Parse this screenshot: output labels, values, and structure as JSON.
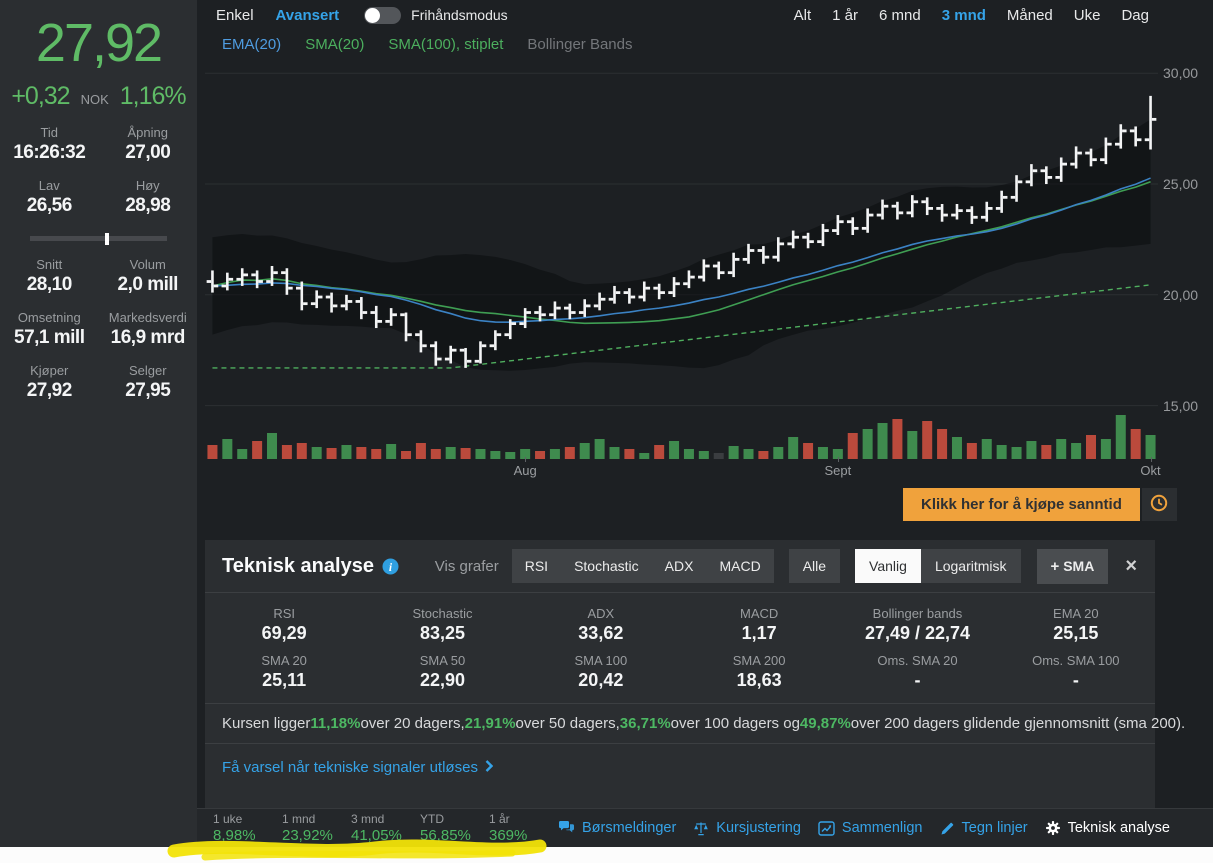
{
  "sidebar": {
    "price": "27,92",
    "change": "+0,32",
    "currency": "NOK",
    "change_pct": "1,16%",
    "stats_top": [
      {
        "label": "Tid",
        "value": "16:26:32"
      },
      {
        "label": "Åpning",
        "value": "27,00"
      },
      {
        "label": "Lav",
        "value": "26,56"
      },
      {
        "label": "Høy",
        "value": "28,98"
      }
    ],
    "stats_bottom": [
      {
        "label": "Snitt",
        "value": "28,10"
      },
      {
        "label": "Volum",
        "value": "2,0 mill"
      },
      {
        "label": "Omsetning",
        "value": "57,1 mill"
      },
      {
        "label": "Markedsverdi",
        "value": "16,9 mrd"
      },
      {
        "label": "Kjøper",
        "value": "27,92"
      },
      {
        "label": "Selger",
        "value": "27,95"
      }
    ],
    "range_slider_pct": 56
  },
  "chart_header": {
    "mode_tabs": [
      {
        "label": "Enkel",
        "active": false
      },
      {
        "label": "Avansert",
        "active": true
      }
    ],
    "freehand_label": "Frihåndsmodus",
    "freehand_on": false,
    "ranges": [
      {
        "label": "Alt",
        "active": false
      },
      {
        "label": "1 år",
        "active": false
      },
      {
        "label": "6 mnd",
        "active": false
      },
      {
        "label": "3 mnd",
        "active": true
      },
      {
        "label": "Måned",
        "active": false
      },
      {
        "label": "Uke",
        "active": false
      },
      {
        "label": "Dag",
        "active": false
      }
    ],
    "legend": [
      {
        "label": "EMA(20)",
        "color": "#4f9ce0"
      },
      {
        "label": "SMA(20)",
        "color": "#4caf5e"
      },
      {
        "label": "SMA(100), stiplet",
        "color": "#4caf5e"
      },
      {
        "label": "Bollinger Bands",
        "color": "#73767a"
      }
    ]
  },
  "realtime_button": {
    "label": "Klikk her for å kjøpe sanntid"
  },
  "panel": {
    "title": "Teknisk analyse",
    "vis_grafer_label": "Vis grafer",
    "graph_buttons": [
      "RSI",
      "Stochastic",
      "ADX",
      "MACD"
    ],
    "alle_label": "Alle",
    "scale_buttons": [
      {
        "label": "Vanlig",
        "active": true
      },
      {
        "label": "Logaritmisk",
        "active": false
      }
    ],
    "add_sma_label": "SMA",
    "close_label": "×",
    "stats_row1": [
      {
        "label": "RSI",
        "value": "69,29"
      },
      {
        "label": "Stochastic",
        "value": "83,25"
      },
      {
        "label": "ADX",
        "value": "33,62"
      },
      {
        "label": "MACD",
        "value": "1,17"
      },
      {
        "label": "Bollinger bands",
        "value": "27,49 / 22,74"
      },
      {
        "label": "EMA 20",
        "value": "25,15"
      }
    ],
    "stats_row2": [
      {
        "label": "SMA 20",
        "value": "25,11"
      },
      {
        "label": "SMA 50",
        "value": "22,90"
      },
      {
        "label": "SMA 100",
        "value": "20,42"
      },
      {
        "label": "SMA 200",
        "value": "18,63"
      },
      {
        "label": "Oms. SMA 20",
        "value": "-"
      },
      {
        "label": "Oms. SMA 100",
        "value": "-"
      }
    ],
    "summary_parts": [
      {
        "text": "Kursen ligger "
      },
      {
        "text": "11,18%",
        "highlight": true
      },
      {
        "text": " over 20 dagers, "
      },
      {
        "text": "21,91%",
        "highlight": true
      },
      {
        "text": " over 50 dagers, "
      },
      {
        "text": "36,71%",
        "highlight": true
      },
      {
        "text": " over 100 dagers og "
      },
      {
        "text": "49,87%",
        "highlight": true
      },
      {
        "text": " over 200 dagers glidende gjennomsnitt (sma 200)."
      }
    ],
    "alert_link": "Få varsel når tekniske signaler utløses"
  },
  "performance": [
    {
      "label": "1 uke",
      "value": "8,98%"
    },
    {
      "label": "1 mnd",
      "value": "23,92%"
    },
    {
      "label": "3 mnd",
      "value": "41,05%"
    },
    {
      "label": "YTD",
      "value": "56,85%"
    },
    {
      "label": "1 år",
      "value": "369%"
    }
  ],
  "toolbar": [
    {
      "label": "Børsmeldinger",
      "icon": "chat",
      "color": "#35a3e8"
    },
    {
      "label": "Kursjustering",
      "icon": "scales",
      "color": "#35a3e8"
    },
    {
      "label": "Sammenlign",
      "icon": "compare",
      "color": "#35a3e8"
    },
    {
      "label": "Tegn linjer",
      "icon": "pencil",
      "color": "#35a3e8"
    },
    {
      "label": "Teknisk analyse",
      "icon": "gear",
      "color": "#ffffff"
    }
  ],
  "colors": {
    "accent_blue": "#35a3e8",
    "green": "#4db863",
    "price_green": "#5fbb66",
    "orange": "#f0a23c",
    "volume_green": "#3f8b4e",
    "volume_red": "#bb4a3c",
    "volume_neutral": "#3a3d40",
    "ema_line": "#3b82c4",
    "sma_line": "#3f9e53",
    "sma100_line": "#4fae5e",
    "candle": "#f3f4f5"
  },
  "chart_data": {
    "type": "candlestick+volume",
    "ylim": [
      14.8,
      30.6
    ],
    "yticks": [
      {
        "label": "30,00",
        "value": 30
      },
      {
        "label": "25,00",
        "value": 25
      },
      {
        "label": "20,00",
        "value": 20
      },
      {
        "label": "15,00",
        "value": 15
      }
    ],
    "months": [
      {
        "label": "Aug",
        "index": 21
      },
      {
        "label": "Sept",
        "index": 42
      },
      {
        "label": "Okt",
        "index": 63
      }
    ],
    "candles": [
      [
        20.6,
        21.1,
        20.1,
        20.4
      ],
      [
        20.4,
        21.0,
        20.2,
        20.7
      ],
      [
        20.7,
        21.2,
        20.4,
        20.9
      ],
      [
        20.9,
        21.1,
        20.3,
        20.6
      ],
      [
        20.6,
        21.3,
        20.4,
        21.0
      ],
      [
        21.0,
        21.2,
        20.0,
        20.3
      ],
      [
        20.3,
        20.6,
        19.3,
        19.6
      ],
      [
        19.6,
        20.2,
        19.4,
        19.9
      ],
      [
        19.9,
        20.1,
        19.2,
        19.5
      ],
      [
        19.5,
        20.0,
        19.3,
        19.7
      ],
      [
        19.7,
        19.9,
        18.9,
        19.2
      ],
      [
        19.2,
        19.5,
        18.5,
        18.8
      ],
      [
        18.8,
        19.4,
        18.6,
        19.1
      ],
      [
        19.1,
        19.2,
        17.9,
        18.2
      ],
      [
        18.2,
        18.4,
        17.4,
        17.7
      ],
      [
        17.7,
        17.9,
        16.8,
        17.1
      ],
      [
        17.1,
        17.7,
        16.9,
        17.5
      ],
      [
        17.5,
        17.6,
        16.7,
        17.0
      ],
      [
        17.0,
        17.9,
        16.9,
        17.7
      ],
      [
        17.7,
        18.4,
        17.5,
        18.2
      ],
      [
        18.2,
        18.9,
        18.0,
        18.7
      ],
      [
        18.7,
        19.4,
        18.5,
        19.2
      ],
      [
        19.2,
        19.5,
        18.8,
        19.1
      ],
      [
        19.1,
        19.7,
        18.9,
        19.4
      ],
      [
        19.4,
        19.6,
        18.9,
        19.2
      ],
      [
        19.2,
        19.8,
        19.0,
        19.5
      ],
      [
        19.5,
        20.1,
        19.3,
        19.8
      ],
      [
        19.8,
        20.4,
        19.6,
        20.1
      ],
      [
        20.1,
        20.3,
        19.6,
        19.9
      ],
      [
        19.9,
        20.6,
        19.7,
        20.3
      ],
      [
        20.3,
        20.5,
        19.8,
        20.1
      ],
      [
        20.1,
        20.8,
        19.9,
        20.5
      ],
      [
        20.5,
        21.1,
        20.3,
        20.8
      ],
      [
        20.8,
        21.6,
        20.6,
        21.3
      ],
      [
        21.3,
        21.5,
        20.7,
        21.0
      ],
      [
        21.0,
        21.9,
        20.8,
        21.6
      ],
      [
        21.6,
        22.3,
        21.4,
        22.0
      ],
      [
        22.0,
        22.2,
        21.4,
        21.7
      ],
      [
        21.7,
        22.6,
        21.5,
        22.3
      ],
      [
        22.3,
        22.9,
        22.1,
        22.6
      ],
      [
        22.6,
        22.8,
        22.1,
        22.4
      ],
      [
        22.4,
        23.2,
        22.2,
        22.9
      ],
      [
        22.9,
        23.6,
        22.7,
        23.3
      ],
      [
        23.3,
        23.5,
        22.7,
        23.0
      ],
      [
        23.0,
        23.9,
        22.8,
        23.6
      ],
      [
        23.6,
        24.3,
        23.4,
        24.0
      ],
      [
        24.0,
        24.2,
        23.4,
        23.7
      ],
      [
        23.7,
        24.5,
        23.5,
        24.2
      ],
      [
        24.2,
        24.4,
        23.6,
        23.9
      ],
      [
        23.9,
        24.1,
        23.3,
        23.6
      ],
      [
        23.6,
        24.1,
        23.4,
        23.8
      ],
      [
        23.8,
        24.0,
        23.2,
        23.5
      ],
      [
        23.5,
        24.2,
        23.3,
        23.9
      ],
      [
        23.9,
        24.7,
        23.7,
        24.4
      ],
      [
        24.4,
        25.4,
        24.2,
        25.1
      ],
      [
        25.1,
        25.9,
        24.9,
        25.6
      ],
      [
        25.6,
        25.8,
        25.0,
        25.3
      ],
      [
        25.3,
        26.2,
        25.1,
        25.9
      ],
      [
        25.9,
        26.7,
        25.7,
        26.4
      ],
      [
        26.4,
        26.6,
        25.8,
        26.1
      ],
      [
        26.1,
        27.1,
        25.9,
        26.8
      ],
      [
        26.8,
        27.7,
        26.6,
        27.4
      ],
      [
        27.4,
        27.6,
        26.7,
        27.0
      ],
      [
        27.0,
        28.98,
        26.56,
        27.92
      ]
    ],
    "volume": [
      14,
      20,
      10,
      18,
      26,
      14,
      16,
      12,
      11,
      14,
      12,
      10,
      15,
      8,
      16,
      10,
      12,
      11,
      10,
      8,
      7,
      10,
      8,
      10,
      12,
      16,
      20,
      12,
      10,
      6,
      14,
      18,
      10,
      8,
      6,
      13,
      10,
      8,
      12,
      22,
      16,
      12,
      10,
      26,
      30,
      36,
      40,
      28,
      38,
      30,
      22,
      16,
      20,
      14,
      12,
      18,
      14,
      20,
      16,
      24,
      20,
      44,
      30,
      24
    ],
    "volume_neutral_index": 34
  }
}
